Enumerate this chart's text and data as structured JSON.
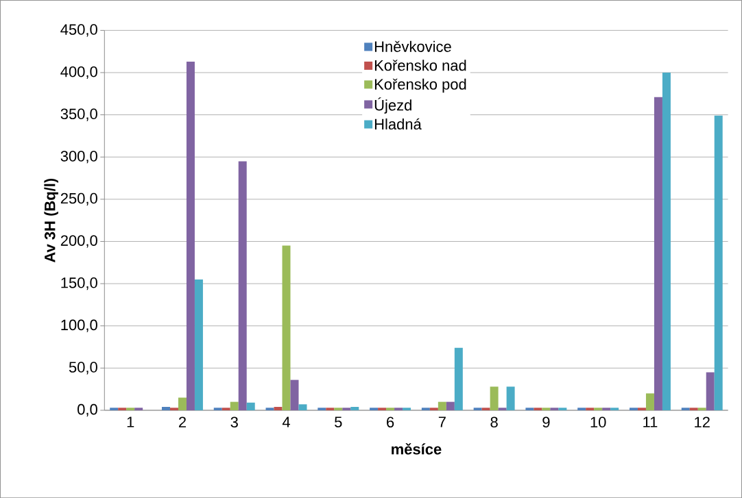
{
  "chart_data": {
    "type": "bar",
    "xlabel": "měsíce",
    "ylabel": "Av 3H (Bq/l)",
    "categories": [
      "1",
      "2",
      "3",
      "4",
      "5",
      "6",
      "7",
      "8",
      "9",
      "10",
      "11",
      "12"
    ],
    "series": [
      {
        "name": "Hněvkovice",
        "color": "#4f81bd",
        "values": [
          3,
          4,
          3,
          3,
          3,
          3,
          3,
          3,
          3,
          3,
          3,
          3
        ]
      },
      {
        "name": "Kořensko nad",
        "color": "#c0504d",
        "values": [
          3,
          3,
          3,
          4,
          3,
          3,
          3,
          3,
          3,
          3,
          3,
          3
        ]
      },
      {
        "name": "Kořensko pod",
        "color": "#9bbb59",
        "values": [
          3,
          15,
          10,
          195,
          3,
          3,
          10,
          28,
          3,
          3,
          20,
          3
        ]
      },
      {
        "name": "Újezd",
        "color": "#8064a2",
        "values": [
          3,
          413,
          295,
          36,
          3,
          3,
          10,
          3,
          3,
          3,
          371,
          45
        ]
      },
      {
        "name": "Hladná",
        "color": "#4bacc6",
        "values": [
          null,
          155,
          9,
          7,
          4,
          3,
          74,
          28,
          3,
          3,
          400,
          349
        ]
      }
    ],
    "ylim": [
      0,
      450
    ],
    "yticks": [
      {
        "value": 0,
        "label": "0,0"
      },
      {
        "value": 50,
        "label": "50,0"
      },
      {
        "value": 100,
        "label": "100,0"
      },
      {
        "value": 150,
        "label": "150,0"
      },
      {
        "value": 200,
        "label": "200,0"
      },
      {
        "value": 250,
        "label": "250,0"
      },
      {
        "value": 300,
        "label": "300,0"
      },
      {
        "value": 350,
        "label": "350,0"
      },
      {
        "value": 400,
        "label": "400,0"
      },
      {
        "value": 450,
        "label": "450,0"
      }
    ],
    "grid": "y",
    "legend": "top"
  }
}
